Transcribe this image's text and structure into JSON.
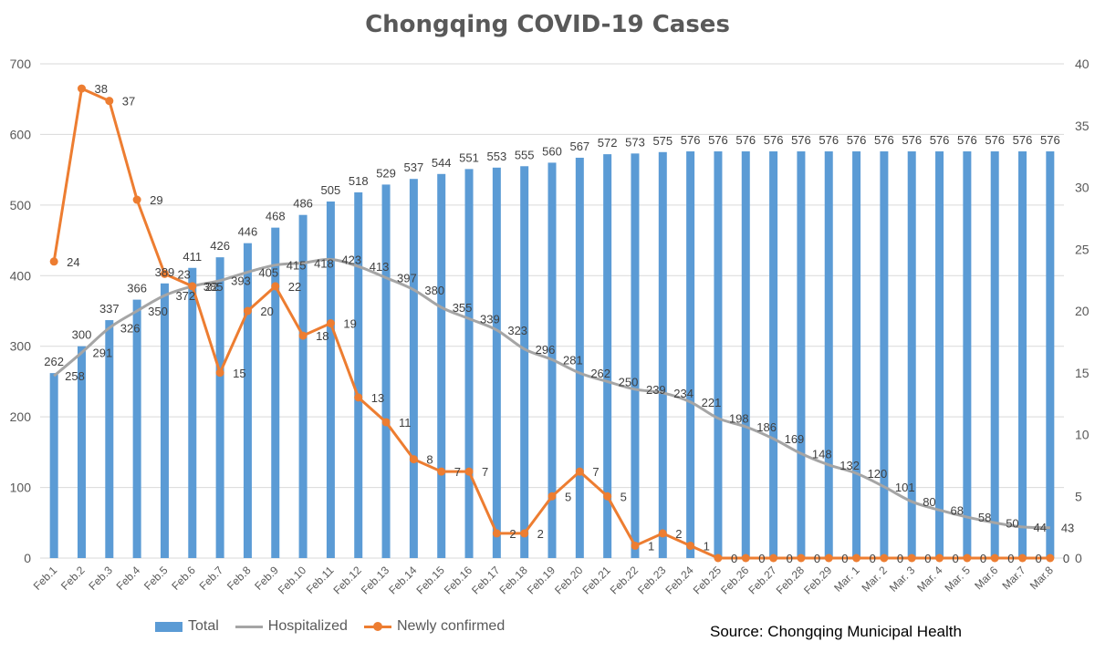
{
  "chart_data": {
    "type": "bar",
    "title": "Chongqing COVID-19 Cases",
    "source": "Source: Chongqing Municipal Health",
    "categories": [
      "Feb.1",
      "Feb.2",
      "Feb.3",
      "Feb.4",
      "Feb.5",
      "Feb.6",
      "Feb.7",
      "Feb.8",
      "Feb.9",
      "Feb.10",
      "Feb.11",
      "Feb.12",
      "Feb.13",
      "Feb.14",
      "Feb.15",
      "Feb.16",
      "Feb.17",
      "Feb.18",
      "Feb.19",
      "Feb.20",
      "Feb.21",
      "Feb.22",
      "Feb.23",
      "Feb.24",
      "Feb.25",
      "Feb.26",
      "Feb.27",
      "Feb.28",
      "Feb.29",
      "Mar. 1",
      "Mar. 2",
      "Mar. 3",
      "Mar. 4",
      "Mar. 5",
      "Mar.6",
      "Mar.7",
      "Mar.8"
    ],
    "series": [
      {
        "name": "Total",
        "type": "bar",
        "axis": "left",
        "color": "#5B9BD5",
        "values": [
          262,
          300,
          337,
          366,
          389,
          411,
          426,
          446,
          468,
          486,
          505,
          518,
          529,
          537,
          544,
          551,
          553,
          555,
          560,
          567,
          572,
          573,
          575,
          576,
          576,
          576,
          576,
          576,
          576,
          576,
          576,
          576,
          576,
          576,
          576,
          576,
          576
        ]
      },
      {
        "name": "Hospitalized",
        "type": "line",
        "axis": "left",
        "color": "#A5A5A5",
        "values": [
          258,
          291,
          326,
          350,
          372,
          385,
          393,
          405,
          415,
          418,
          423,
          413,
          397,
          380,
          355,
          339,
          323,
          296,
          281,
          262,
          250,
          239,
          234,
          221,
          198,
          186,
          169,
          148,
          132,
          120,
          101,
          80,
          68,
          58,
          50,
          44,
          43
        ]
      },
      {
        "name": "Newly confirmed",
        "type": "line",
        "axis": "right",
        "color": "#ED7D31",
        "values": [
          24,
          38,
          37,
          29,
          23,
          22,
          15,
          20,
          22,
          18,
          19,
          13,
          11,
          8,
          7,
          7,
          2,
          2,
          5,
          7,
          5,
          1,
          2,
          1,
          0,
          0,
          0,
          0,
          0,
          0,
          0,
          0,
          0,
          0,
          0,
          0,
          0
        ]
      }
    ],
    "y_left": {
      "min": 0,
      "max": 700,
      "ticks": [
        0,
        100,
        200,
        300,
        400,
        500,
        600,
        700
      ]
    },
    "y_right": {
      "min": 0,
      "max": 40,
      "ticks": [
        0,
        5,
        10,
        15,
        20,
        25,
        30,
        35,
        40
      ]
    },
    "grid": true,
    "legend": "bottom-left"
  }
}
